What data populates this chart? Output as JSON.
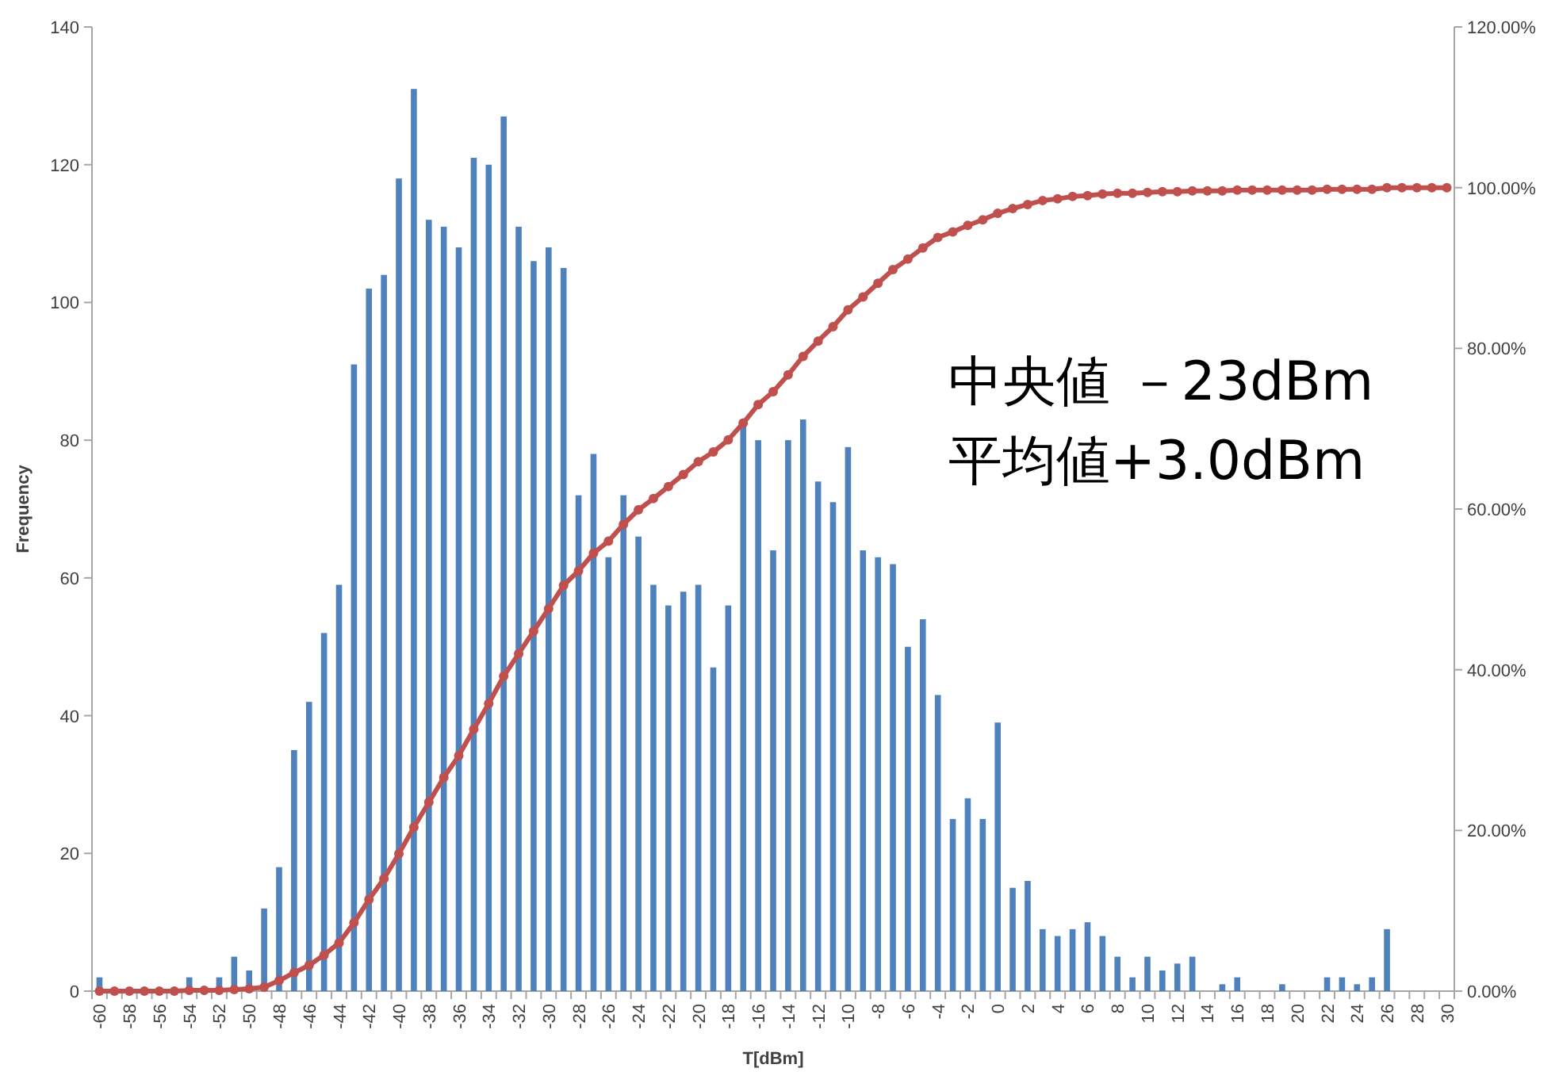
{
  "chart_data": {
    "type": "bar",
    "xlabel": "T[dBm]",
    "ylabel": "Frequency",
    "categories": [
      "-60",
      null,
      "-58",
      null,
      "-56",
      null,
      "-54",
      null,
      "-52",
      null,
      "-50",
      null,
      "-48",
      null,
      "-46",
      null,
      "-44",
      null,
      "-42",
      null,
      "-40",
      null,
      "-38",
      null,
      "-36",
      null,
      "-34",
      null,
      "-32",
      null,
      "-30",
      null,
      "-28",
      null,
      "-26",
      null,
      "-24",
      null,
      "-22",
      null,
      "-20",
      null,
      "-18",
      null,
      "-16",
      null,
      "-14",
      null,
      "-12",
      null,
      "-10",
      null,
      "-8",
      null,
      "-6",
      null,
      "-4",
      null,
      "-2",
      null,
      "0",
      null,
      "2",
      null,
      "4",
      null,
      "6",
      null,
      "8",
      null,
      "10",
      null,
      "12",
      null,
      "14",
      null,
      "16",
      null,
      "18",
      null,
      "20",
      null,
      "22",
      null,
      "24",
      null,
      "26",
      null,
      "28",
      null,
      "30"
    ],
    "series": [
      {
        "color": "#4f81bd",
        "values": [
          2,
          0,
          0,
          0,
          0,
          0,
          2,
          0,
          2,
          5,
          3,
          12,
          18,
          35,
          42,
          52,
          59,
          91,
          102,
          104,
          118,
          131,
          112,
          111,
          108,
          121,
          120,
          127,
          111,
          106,
          108,
          105,
          72,
          78,
          63,
          72,
          66,
          59,
          56,
          58,
          59,
          47,
          56,
          82,
          80,
          64,
          80,
          83,
          74,
          71,
          79,
          64,
          63,
          62,
          50,
          54,
          43,
          25,
          28,
          25,
          39,
          15,
          16,
          9,
          8,
          9,
          10,
          8,
          5,
          2,
          5,
          3,
          4,
          5,
          0,
          1,
          2,
          0,
          0,
          1,
          0,
          0,
          2,
          2,
          1,
          2,
          9,
          0,
          0,
          0,
          0
        ]
      },
      {
        "type": "line",
        "axis": "y2",
        "color": "#c0504d",
        "marker": "circle",
        "values": [
          0,
          0,
          0,
          0,
          0,
          0,
          0.1,
          0.1,
          0.1,
          0.2,
          0.3,
          0.5,
          1.3,
          2.3,
          3.2,
          4.5,
          6.0,
          8.5,
          11.4,
          14.0,
          17.1,
          20.4,
          23.5,
          26.6,
          29.3,
          32.6,
          35.8,
          39.2,
          42.0,
          44.8,
          47.6,
          50.5,
          52.3,
          54.5,
          56.0,
          58.1,
          59.9,
          61.3,
          62.8,
          64.3,
          65.9,
          67.1,
          68.6,
          70.7,
          73.0,
          74.6,
          76.7,
          79.0,
          80.9,
          82.7,
          84.8,
          86.4,
          88.1,
          89.8,
          91.1,
          92.5,
          93.8,
          94.5,
          95.3,
          96.0,
          96.8,
          97.4,
          97.9,
          98.4,
          98.6,
          98.9,
          99.0,
          99.2,
          99.3,
          99.3,
          99.4,
          99.5,
          99.5,
          99.6,
          99.6,
          99.6,
          99.7,
          99.7,
          99.7,
          99.7,
          99.7,
          99.7,
          99.8,
          99.8,
          99.8,
          99.8,
          100,
          100,
          100,
          100,
          100
        ]
      }
    ],
    "ylim": [
      0,
      140
    ],
    "yticks": [
      0,
      20,
      40,
      60,
      80,
      100,
      120,
      140
    ],
    "y2lim": [
      0,
      120
    ],
    "y2ticks": [
      {
        "value": 0,
        "label": "0.00%"
      },
      {
        "value": 20,
        "label": "20.00%"
      },
      {
        "value": 40,
        "label": "40.00%"
      },
      {
        "value": 60,
        "label": "60.00%"
      },
      {
        "value": 80,
        "label": "80.00%"
      },
      {
        "value": 100,
        "label": "100.00%"
      },
      {
        "value": 120,
        "label": "120.00%"
      }
    ],
    "annotations": [
      "中央値 －23dBm",
      "平均値+3.0dBm"
    ]
  }
}
